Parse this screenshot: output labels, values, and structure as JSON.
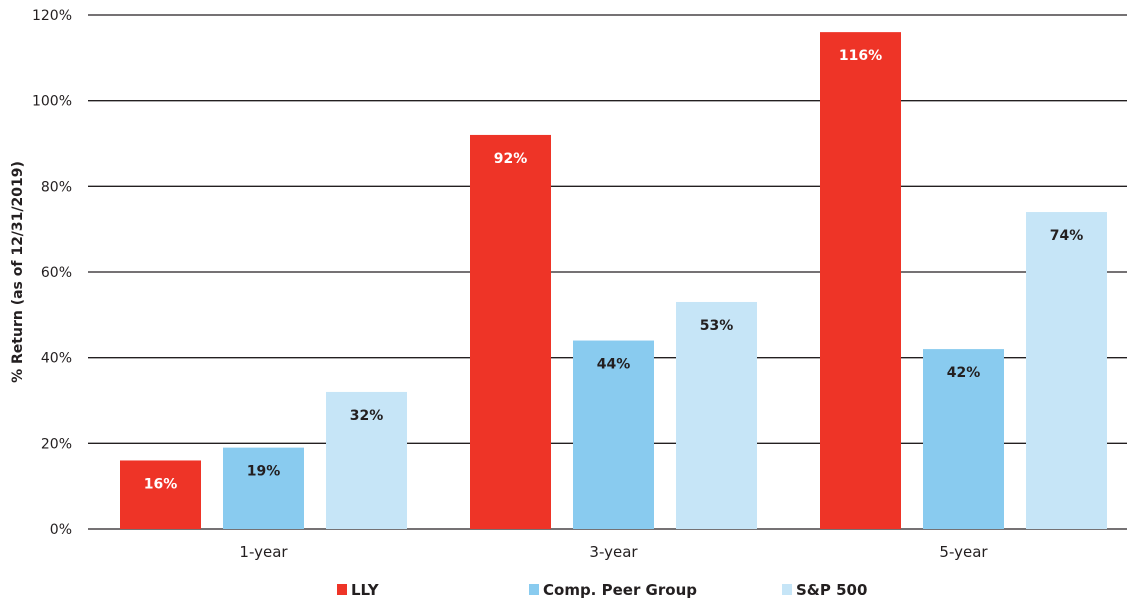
{
  "chart_data": {
    "type": "bar",
    "categories": [
      "1-year",
      "3-year",
      "5-year"
    ],
    "series": [
      {
        "name": "LLY",
        "values": [
          16,
          92,
          116
        ],
        "labels": [
          "16%",
          "92%",
          "116%"
        ],
        "color": "#ee3427",
        "label_color": "#ffffff"
      },
      {
        "name": "Comp. Peer Group",
        "values": [
          19,
          44,
          42
        ],
        "labels": [
          "19%",
          "44%",
          "42%"
        ],
        "color": "#89cbef",
        "label_color": "#231f20"
      },
      {
        "name": "S&P 500",
        "values": [
          32,
          53,
          74
        ],
        "labels": [
          "32%",
          "53%",
          "74%"
        ],
        "color": "#c6e5f7",
        "label_color": "#231f20"
      }
    ],
    "ylabel": "% Return (as of 12/31/2019)",
    "ylim": [
      0,
      120
    ],
    "yticks": [
      0,
      20,
      40,
      60,
      80,
      100,
      120
    ],
    "ytick_labels": [
      "0%",
      "20%",
      "40%",
      "60%",
      "80%",
      "100%",
      "120%"
    ],
    "grid": true,
    "legend_position": "bottom"
  }
}
